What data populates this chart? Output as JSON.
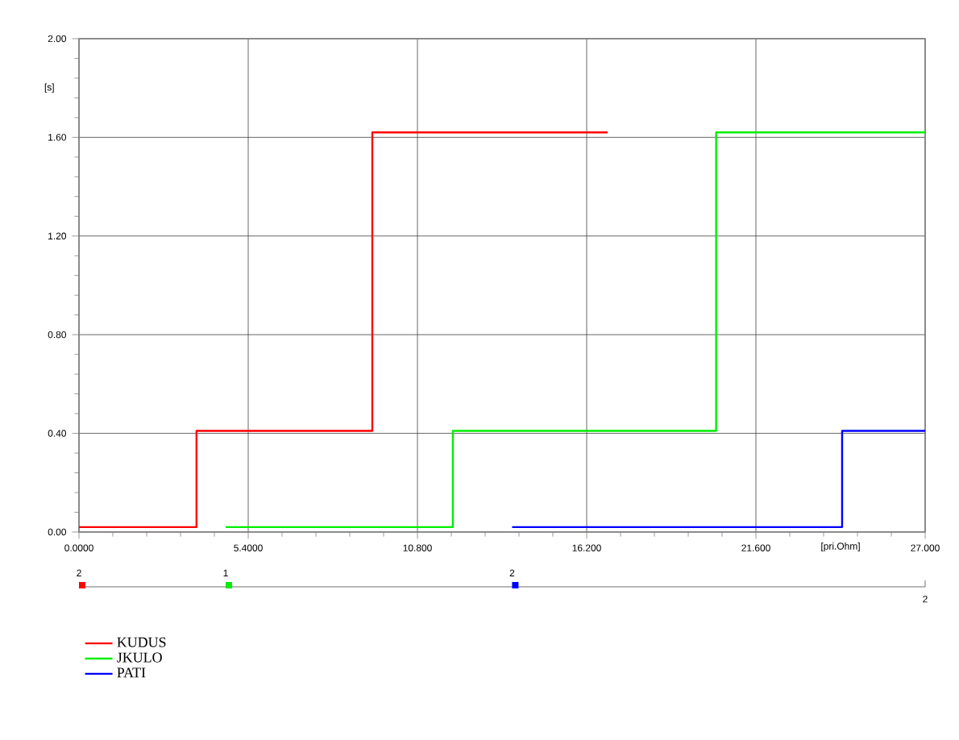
{
  "chart_data": {
    "type": "step",
    "xlabel": "[pri.Ohm]",
    "ylabel": "[s]",
    "series": [
      {
        "name": "KUDUS",
        "color": "#ff0000",
        "x": [
          0,
          3.75,
          9.36,
          16.87
        ],
        "values": [
          0.02,
          0.41,
          1.62,
          1.62
        ]
      },
      {
        "name": "JKULO",
        "color": "#00ee00",
        "x": [
          4.68,
          11.93,
          20.33,
          27
        ],
        "values": [
          0.02,
          0.41,
          1.62,
          1.62
        ]
      },
      {
        "name": "PATI",
        "color": "#0000ff",
        "x": [
          13.82,
          24.35,
          27
        ],
        "values": [
          0.02,
          0.41,
          0.41
        ]
      }
    ],
    "xlim": [
      0,
      27
    ],
    "ylim": [
      0,
      2
    ],
    "xticks": [
      {
        "value": 0,
        "label": "0.0000"
      },
      {
        "value": 5.4,
        "label": "5.4000"
      },
      {
        "value": 10.8,
        "label": "10.800"
      },
      {
        "value": 16.2,
        "label": "16.200"
      },
      {
        "value": 21.6,
        "label": "21.600"
      },
      {
        "value": 27,
        "label": "27.000"
      }
    ],
    "yticks": [
      {
        "value": 0,
        "label": "0.00"
      },
      {
        "value": 0.4,
        "label": "0.40"
      },
      {
        "value": 0.8,
        "label": "0.80"
      },
      {
        "value": 1.2,
        "label": "1.20"
      },
      {
        "value": 1.6,
        "label": "1.60"
      },
      {
        "value": 2,
        "label": "2.00"
      }
    ],
    "annotations": [
      "2",
      "1",
      "2",
      "2"
    ],
    "grid": true,
    "legend": "bottom left",
    "line_style": "solid",
    "marker": "none"
  }
}
